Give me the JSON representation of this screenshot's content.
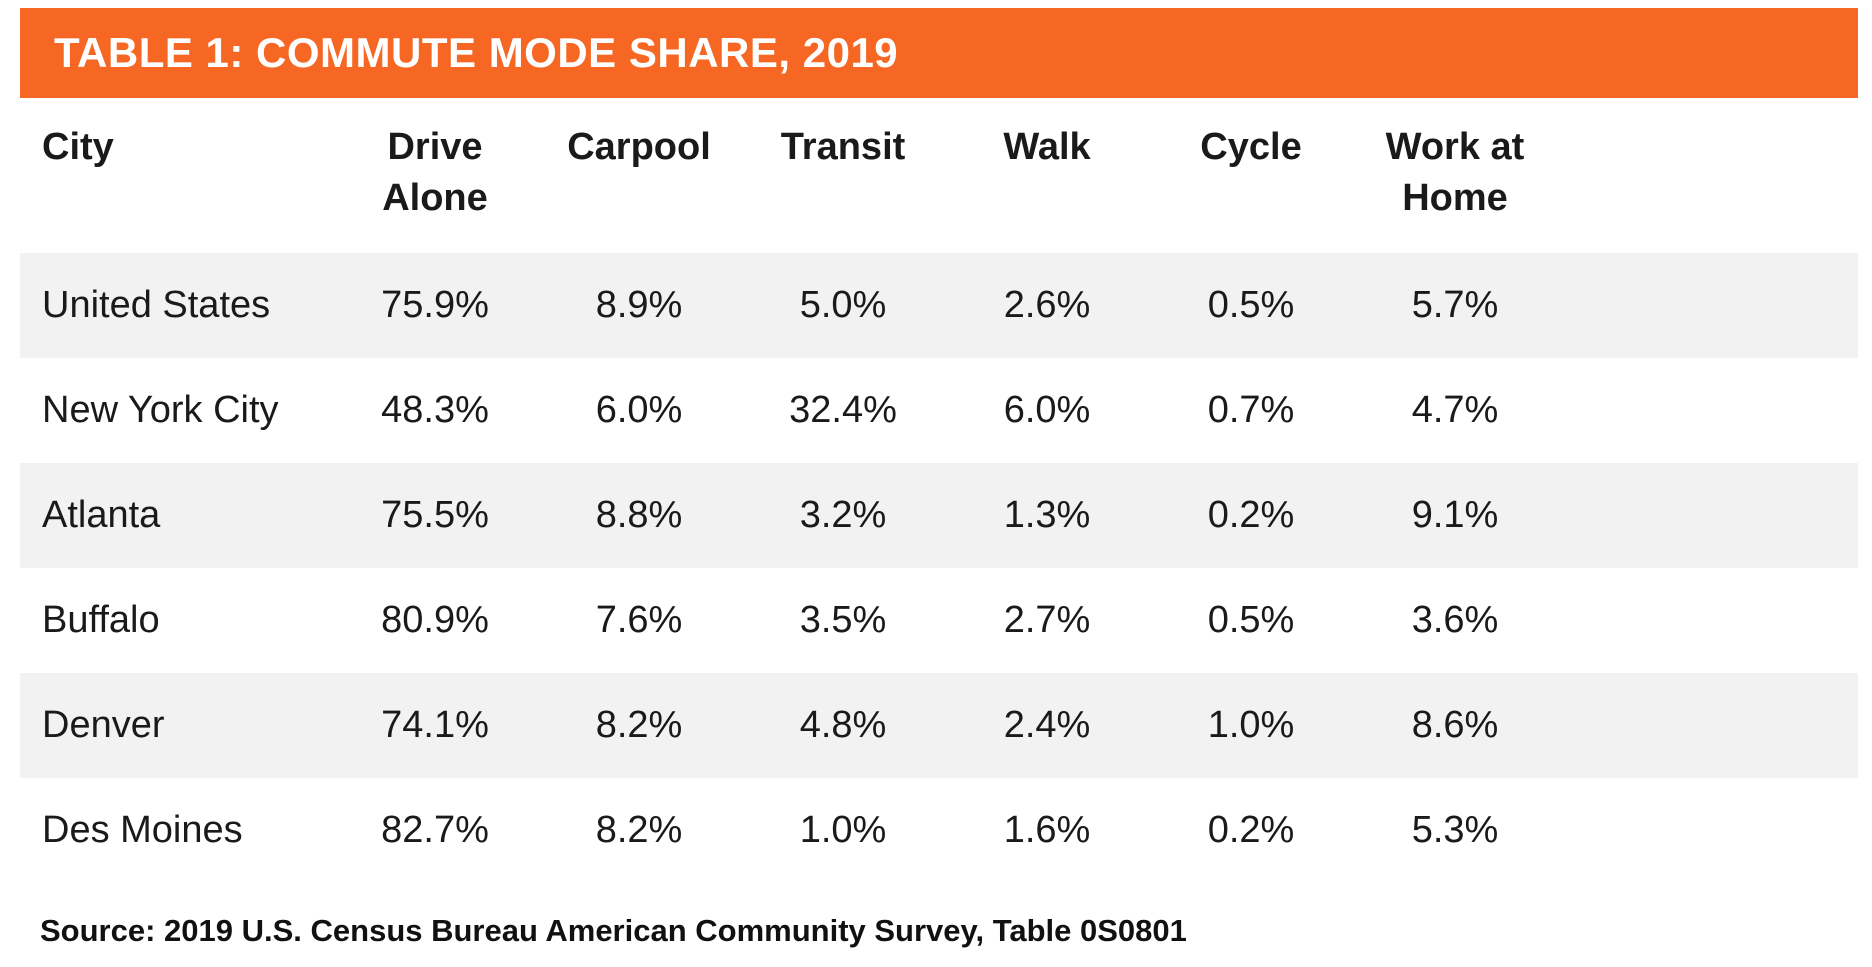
{
  "title": "TABLE 1: COMMUTE MODE SHARE, 2019",
  "colors": {
    "accent_orange": "#f66723",
    "row_alt_gray": "#f2f2f2",
    "title_text": "#ffffff",
    "body_text": "#1a1a1a"
  },
  "table": {
    "header": {
      "cells": [
        "City",
        "Drive Alone",
        "Carpool",
        "Transit",
        "Walk",
        "Cycle",
        "Work at Home"
      ]
    },
    "rows": [
      {
        "cells": [
          "United States",
          "75.9%",
          "8.9%",
          "5.0%",
          "2.6%",
          "0.5%",
          "5.7%"
        ]
      },
      {
        "cells": [
          "New York City",
          "48.3%",
          "6.0%",
          "32.4%",
          "6.0%",
          "0.7%",
          "4.7%"
        ]
      },
      {
        "cells": [
          "Atlanta",
          "75.5%",
          "8.8%",
          "3.2%",
          "1.3%",
          "0.2%",
          "9.1%"
        ]
      },
      {
        "cells": [
          "Buffalo",
          "80.9%",
          "7.6%",
          "3.5%",
          "2.7%",
          "0.5%",
          "3.6%"
        ]
      },
      {
        "cells": [
          "Denver",
          "74.1%",
          "8.2%",
          "4.8%",
          "2.4%",
          "1.0%",
          "8.6%"
        ]
      },
      {
        "cells": [
          "Des Moines",
          "82.7%",
          "8.2%",
          "1.0%",
          "1.6%",
          "0.2%",
          "5.3%"
        ]
      }
    ]
  },
  "source": "Source: 2019 U.S. Census Bureau American Community Survey, Table 0S0801"
}
